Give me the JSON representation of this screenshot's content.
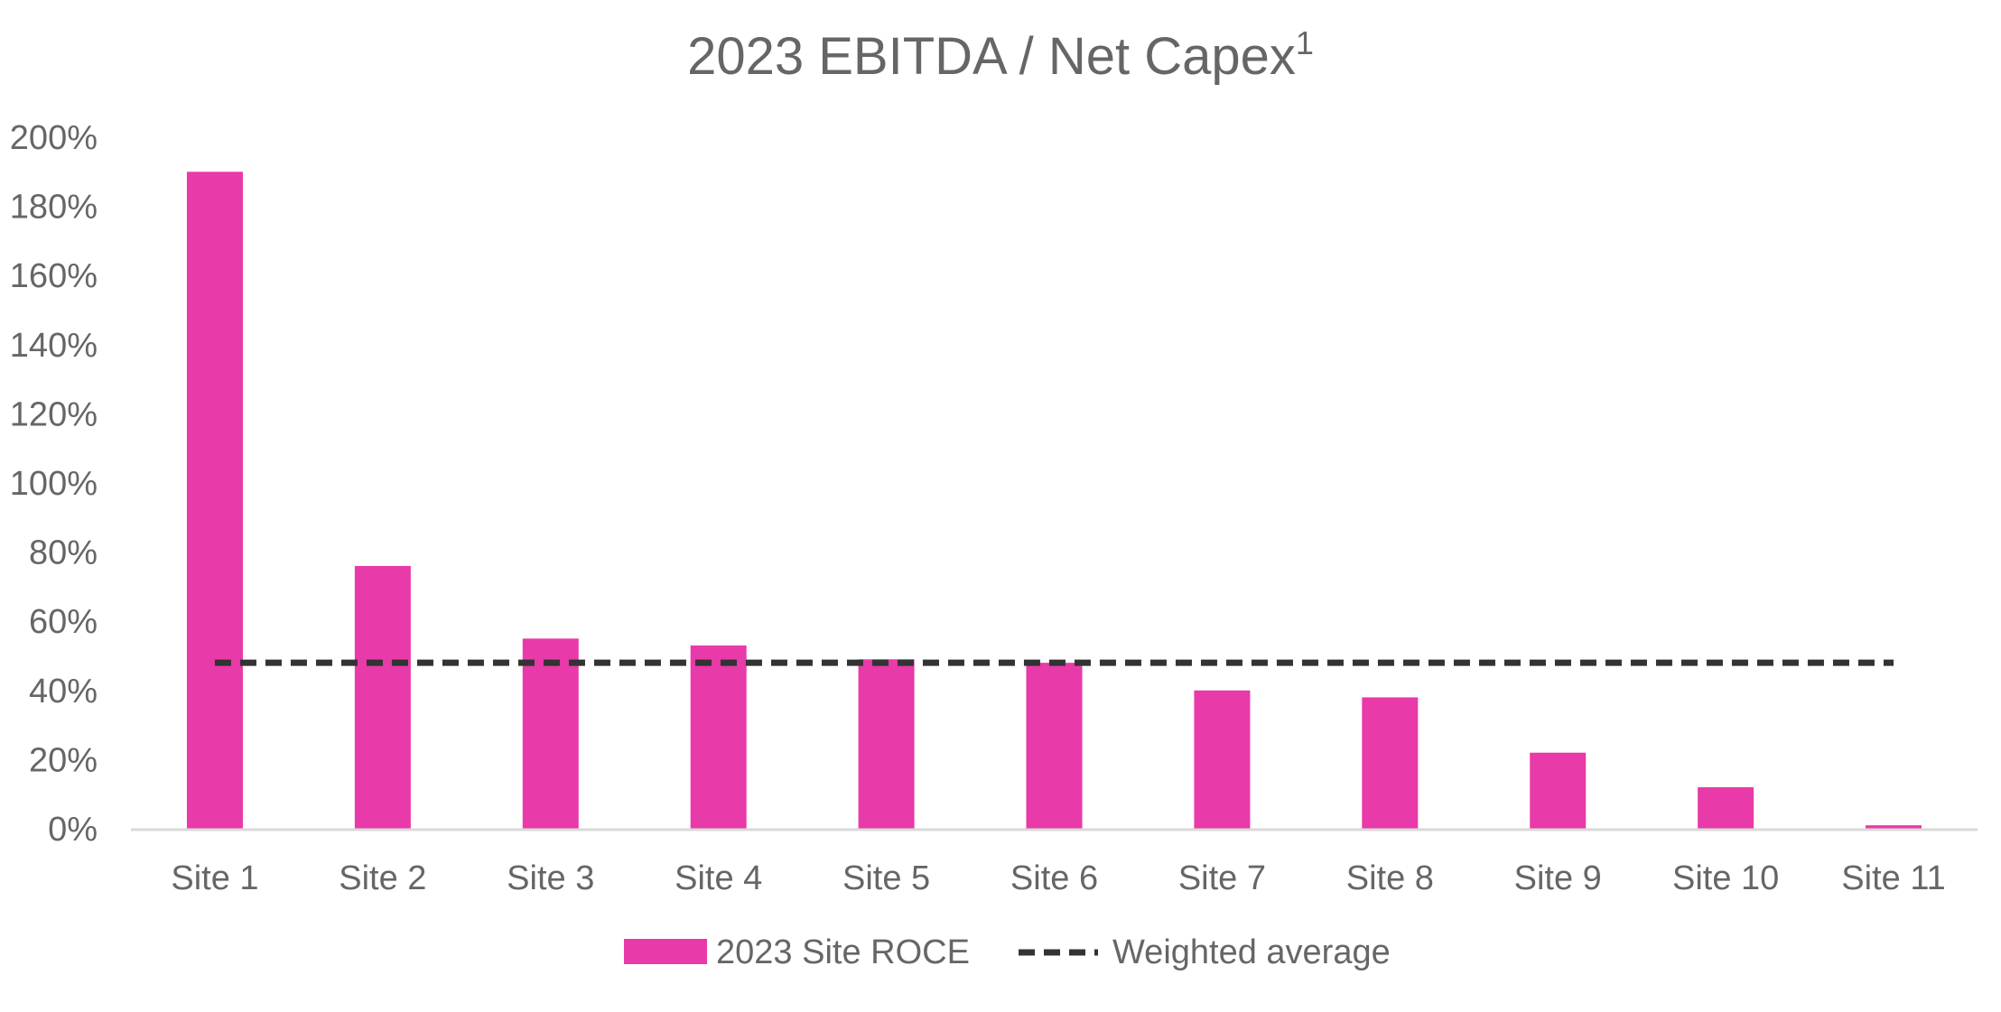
{
  "chart_data": {
    "type": "bar",
    "title": "2023 EBITDA / Net Capex",
    "title_superscript": "1",
    "xlabel": "",
    "ylabel": "",
    "categories": [
      "Site 1",
      "Site 2",
      "Site 3",
      "Site 4",
      "Site 5",
      "Site 6",
      "Site 7",
      "Site 8",
      "Site 9",
      "Site 10",
      "Site 11"
    ],
    "series": [
      {
        "name": "2023 Site ROCE",
        "kind": "bar",
        "color": "#E83AA8",
        "values": [
          190,
          76,
          55,
          53,
          49,
          48,
          40,
          38,
          22,
          12,
          1
        ]
      },
      {
        "name": "Weighted average",
        "kind": "dashed-line",
        "color": "#333333",
        "values": [
          48,
          48,
          48,
          48,
          48,
          48,
          48,
          48,
          48,
          48,
          48
        ]
      }
    ],
    "ylim": [
      0,
      200
    ],
    "yticks": [
      "0%",
      "20%",
      "40%",
      "60%",
      "80%",
      "100%",
      "120%",
      "140%",
      "160%",
      "180%",
      "200%"
    ],
    "grid": false,
    "legend": "bottom"
  },
  "colors": {
    "text": "#666666",
    "axis": "#d9d9d9",
    "bar": "#E83AA8",
    "line": "#333333"
  }
}
